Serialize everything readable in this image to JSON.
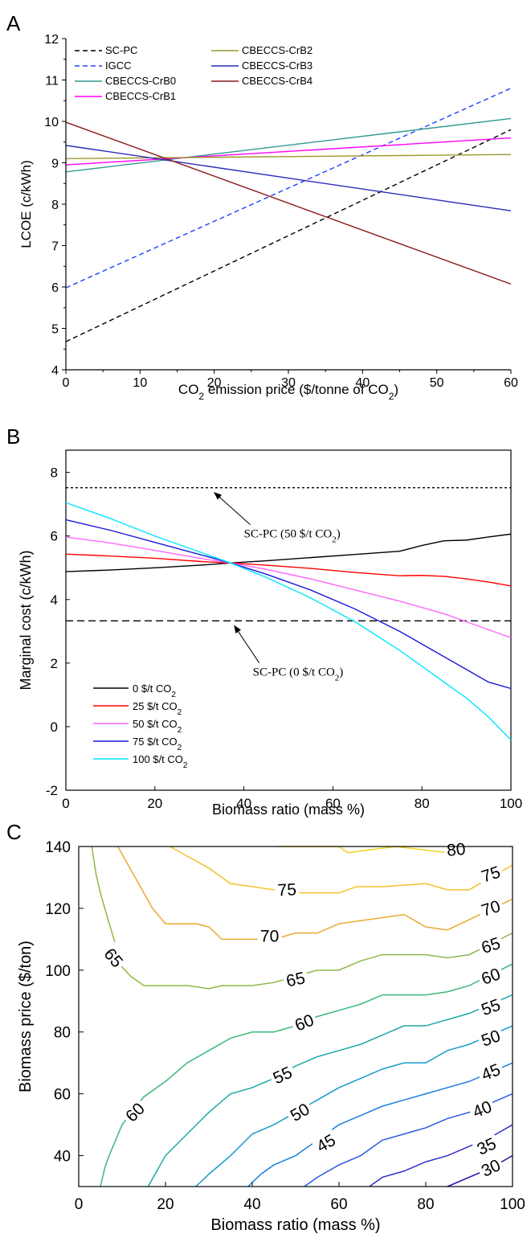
{
  "panel_labels": [
    "A",
    "B",
    "C"
  ],
  "chart_data": [
    {
      "panel": "A",
      "type": "line",
      "xlabel_main": "CO",
      "xlabel_sub": "2",
      "xlabel_rest": " emission price ($/tonne of CO",
      "xlabel_sub2": "2",
      "xlabel_end": ")",
      "ylabel": "LCOE (c/kWh)",
      "xlim": [
        0,
        60
      ],
      "ylim": [
        4,
        12
      ],
      "xticks": [
        "0",
        "10",
        "20",
        "30",
        "40",
        "50",
        "60"
      ],
      "yticks": [
        "4",
        "5",
        "6",
        "7",
        "8",
        "9",
        "10",
        "11",
        "12"
      ],
      "legend_position": "top-left",
      "series": [
        {
          "name": "SC-PC",
          "color": "#000000",
          "dash": "dashed",
          "x": [
            0,
            60
          ],
          "y": [
            4.68,
            9.8
          ]
        },
        {
          "name": "IGCC",
          "color": "#1f3fff",
          "dash": "dashed",
          "x": [
            0,
            60
          ],
          "y": [
            5.98,
            10.8
          ]
        },
        {
          "name": "CBECCS-CrB0",
          "color": "#2f9a8e",
          "dash": "solid",
          "x": [
            0,
            60
          ],
          "y": [
            8.78,
            10.07
          ]
        },
        {
          "name": "CBECCS-CrB1",
          "color": "#ff00ff",
          "dash": "solid",
          "x": [
            0,
            60
          ],
          "y": [
            8.95,
            9.6
          ]
        },
        {
          "name": "CBECCS-CrB2",
          "color": "#9a9a2a",
          "dash": "solid",
          "x": [
            0,
            60
          ],
          "y": [
            9.1,
            9.2
          ]
        },
        {
          "name": "CBECCS-CrB3",
          "color": "#2b2bb8",
          "dash": "solid",
          "x": [
            0,
            60
          ],
          "y": [
            9.42,
            7.84
          ]
        },
        {
          "name": "CBECCS-CrB4",
          "color": "#8b1a1a",
          "dash": "solid",
          "x": [
            0,
            60
          ],
          "y": [
            9.98,
            6.07
          ]
        }
      ]
    },
    {
      "panel": "B",
      "type": "line",
      "xlabel": "Biomass ratio (mass %)",
      "ylabel": "Marginal cost (c/kWh)",
      "xlim": [
        0,
        100
      ],
      "ylim": [
        -2,
        8.7
      ],
      "xticks": [
        "0",
        "20",
        "40",
        "60",
        "80",
        "100"
      ],
      "yticks": [
        "-2",
        "0",
        "2",
        "4",
        "6",
        "8"
      ],
      "legend_position": "bottom-left",
      "reference_lines": [
        {
          "name": "SC-PC (50 $/t CO2)",
          "y": 7.52,
          "style": "dotted"
        },
        {
          "name": "SC-PC (0 $/t CO2)",
          "y": 3.33,
          "style": "dashed"
        }
      ],
      "annotations": [
        {
          "text": "SC-PC (50 $/t CO",
          "sub": "2",
          "end": ")",
          "arrow_to_x": 33,
          "arrow_to_y": 7.52,
          "text_x": 40,
          "text_y": 5.95
        },
        {
          "text": "SC-PC (0 $/t CO",
          "sub": "2",
          "end": ")",
          "arrow_to_x": 37.5,
          "arrow_to_y": 3.33,
          "text_x": 42,
          "text_y": 1.6
        }
      ],
      "series": [
        {
          "name_main": "0 $/t CO",
          "name_sub": "2",
          "color": "#000000",
          "x": [
            0,
            10,
            20,
            30,
            37,
            45,
            55,
            65,
            75,
            80,
            85,
            90,
            95,
            100
          ],
          "y": [
            4.88,
            4.93,
            5.0,
            5.08,
            5.15,
            5.22,
            5.32,
            5.42,
            5.52,
            5.7,
            5.85,
            5.87,
            5.97,
            6.06
          ]
        },
        {
          "name_main": "25 $/t CO",
          "name_sub": "2",
          "color": "#ff0000",
          "x": [
            0,
            10,
            20,
            30,
            37,
            45,
            55,
            65,
            75,
            80,
            85,
            90,
            95,
            100
          ],
          "y": [
            5.43,
            5.37,
            5.3,
            5.2,
            5.15,
            5.08,
            4.98,
            4.85,
            4.75,
            4.76,
            4.73,
            4.65,
            4.55,
            4.43
          ]
        },
        {
          "name_main": "50 $/t CO",
          "name_sub": "2",
          "color": "#ff66ff",
          "x": [
            0,
            10,
            20,
            30,
            37,
            45,
            55,
            65,
            75,
            80,
            85,
            90,
            95,
            100
          ],
          "y": [
            5.97,
            5.78,
            5.55,
            5.3,
            5.15,
            4.95,
            4.65,
            4.3,
            3.95,
            3.75,
            3.55,
            3.3,
            3.05,
            2.8
          ]
        },
        {
          "name_main": "75 $/t CO",
          "name_sub": "2",
          "color": "#1a1adb",
          "x": [
            0,
            10,
            20,
            30,
            37,
            45,
            55,
            65,
            75,
            80,
            85,
            90,
            95,
            100
          ],
          "y": [
            6.51,
            6.18,
            5.8,
            5.42,
            5.15,
            4.8,
            4.3,
            3.7,
            3.0,
            2.6,
            2.2,
            1.8,
            1.4,
            1.2
          ]
        },
        {
          "name_main": "100 $/t CO",
          "name_sub": "2",
          "color": "#00e5ff",
          "x": [
            0,
            10,
            20,
            30,
            37,
            45,
            55,
            65,
            75,
            80,
            85,
            90,
            95,
            100
          ],
          "y": [
            7.05,
            6.55,
            6.0,
            5.5,
            5.15,
            4.7,
            4.05,
            3.3,
            2.4,
            1.9,
            1.4,
            0.9,
            0.3,
            -0.42
          ]
        }
      ]
    },
    {
      "panel": "C",
      "type": "contour",
      "xlabel": "Biomass ratio (mass %)",
      "ylabel": "Biomass price ($/ton)",
      "xlim": [
        0,
        100
      ],
      "ylim": [
        30,
        140
      ],
      "xticks": [
        "0",
        "20",
        "40",
        "60",
        "80",
        "100"
      ],
      "yticks": [
        "40",
        "60",
        "80",
        "100",
        "120",
        "140"
      ],
      "contours": [
        {
          "level": "80",
          "color": "#f2d21a",
          "x": [
            46,
            60,
            62,
            73,
            85,
            88
          ],
          "y": [
            140,
            140,
            138,
            140,
            138,
            140
          ]
        },
        {
          "level": "75",
          "color": "#f5c02a",
          "x": [
            21,
            30,
            35,
            50,
            60,
            64,
            70,
            80,
            85,
            90,
            100
          ],
          "y": [
            140,
            133,
            128,
            125,
            125,
            127,
            127,
            128,
            126,
            126,
            134
          ]
        },
        {
          "level": "70",
          "color": "#eaaa2e",
          "x": [
            9,
            13,
            17,
            20,
            27,
            30,
            33,
            37,
            45,
            50,
            55,
            60,
            65,
            70,
            75,
            80,
            85,
            100
          ],
          "y": [
            140,
            130,
            120,
            115,
            115,
            114,
            110,
            110,
            110,
            112,
            112,
            115,
            116,
            117,
            118,
            114,
            113,
            123
          ]
        },
        {
          "level": "65",
          "color": "#8cb847",
          "x": [
            3,
            4,
            5,
            6,
            10,
            12,
            15,
            25,
            30,
            33,
            35,
            40,
            45,
            50,
            55,
            60,
            65,
            70,
            75,
            80,
            85,
            90,
            100
          ],
          "y": [
            140,
            131,
            125,
            120,
            101,
            98,
            95,
            95,
            94,
            95,
            95,
            95,
            96,
            98,
            100,
            100,
            103,
            105,
            105,
            105,
            104,
            105,
            112
          ]
        },
        {
          "level": "60",
          "color": "#3cb87a",
          "x": [
            5,
            6,
            7,
            10,
            15,
            20,
            25,
            30,
            35,
            40,
            45,
            50,
            55,
            60,
            65,
            70,
            75,
            80,
            85,
            90,
            100
          ],
          "y": [
            30,
            36,
            40,
            50,
            59,
            64,
            70,
            74,
            78,
            80,
            80,
            82,
            85,
            87,
            89,
            92,
            92,
            92,
            93,
            95,
            102
          ]
        },
        {
          "level": "55",
          "color": "#1fa8a6",
          "x": [
            16,
            20,
            25,
            30,
            35,
            40,
            45,
            50,
            55,
            60,
            65,
            70,
            75,
            80,
            85,
            90,
            100
          ],
          "y": [
            30,
            40,
            47,
            54,
            60,
            62,
            65,
            69,
            72,
            74,
            76,
            79,
            82,
            82,
            84,
            86,
            92
          ]
        },
        {
          "level": "50",
          "color": "#1999cf",
          "x": [
            27,
            30,
            35,
            40,
            45,
            50,
            55,
            60,
            65,
            70,
            75,
            80,
            85,
            90,
            100
          ],
          "y": [
            30,
            34,
            40,
            47,
            50,
            54,
            58,
            62,
            65,
            68,
            70,
            70,
            74,
            76,
            82
          ]
        },
        {
          "level": "45",
          "color": "#1f7fe0",
          "x": [
            39,
            42,
            45,
            50,
            55,
            60,
            65,
            70,
            75,
            80,
            85,
            90,
            100
          ],
          "y": [
            30,
            34,
            37,
            40,
            45,
            50,
            53,
            56,
            58,
            60,
            62,
            64,
            70
          ]
        },
        {
          "level": "40",
          "color": "#2a5be0",
          "x": [
            52,
            55,
            60,
            65,
            70,
            75,
            80,
            85,
            90,
            100
          ],
          "y": [
            30,
            33,
            37,
            40,
            45,
            47,
            49,
            52,
            54,
            60
          ]
        },
        {
          "level": "35",
          "color": "#3030c8",
          "x": [
            67,
            70,
            75,
            80,
            85,
            90,
            95,
            100
          ],
          "y": [
            30,
            33,
            35,
            38,
            40,
            43,
            46,
            50
          ]
        },
        {
          "level": "30",
          "color": "#2a0ea8",
          "x": [
            85,
            90,
            95,
            100
          ],
          "y": [
            30,
            33,
            36,
            40
          ]
        }
      ],
      "labels": [
        {
          "text": "80",
          "x": 87,
          "y": 139,
          "angle": -5
        },
        {
          "text": "75",
          "x": 95,
          "y": 131,
          "angle": -18
        },
        {
          "text": "75",
          "x": 48,
          "y": 126,
          "angle": -3
        },
        {
          "text": "70",
          "x": 95,
          "y": 120,
          "angle": -18
        },
        {
          "text": "70",
          "x": 44,
          "y": 111,
          "angle": 0
        },
        {
          "text": "65",
          "x": 95,
          "y": 108,
          "angle": -18
        },
        {
          "text": "65",
          "x": 8,
          "y": 104,
          "angle": 50
        },
        {
          "text": "65",
          "x": 50,
          "y": 97,
          "angle": -12
        },
        {
          "text": "60",
          "x": 95,
          "y": 98,
          "angle": -20
        },
        {
          "text": "60",
          "x": 52,
          "y": 83,
          "angle": -22
        },
        {
          "text": "60",
          "x": 13,
          "y": 54,
          "angle": -45
        },
        {
          "text": "55",
          "x": 95,
          "y": 88,
          "angle": -20
        },
        {
          "text": "55",
          "x": 47,
          "y": 66,
          "angle": -25
        },
        {
          "text": "50",
          "x": 95,
          "y": 78,
          "angle": -20
        },
        {
          "text": "50",
          "x": 51,
          "y": 54,
          "angle": -30
        },
        {
          "text": "45",
          "x": 95,
          "y": 67,
          "angle": -22
        },
        {
          "text": "45",
          "x": 57,
          "y": 44,
          "angle": -30
        },
        {
          "text": "40",
          "x": 93,
          "y": 55,
          "angle": -22
        },
        {
          "text": "35",
          "x": 94,
          "y": 43,
          "angle": -25
        },
        {
          "text": "30",
          "x": 95,
          "y": 36,
          "angle": -25
        }
      ]
    }
  ]
}
